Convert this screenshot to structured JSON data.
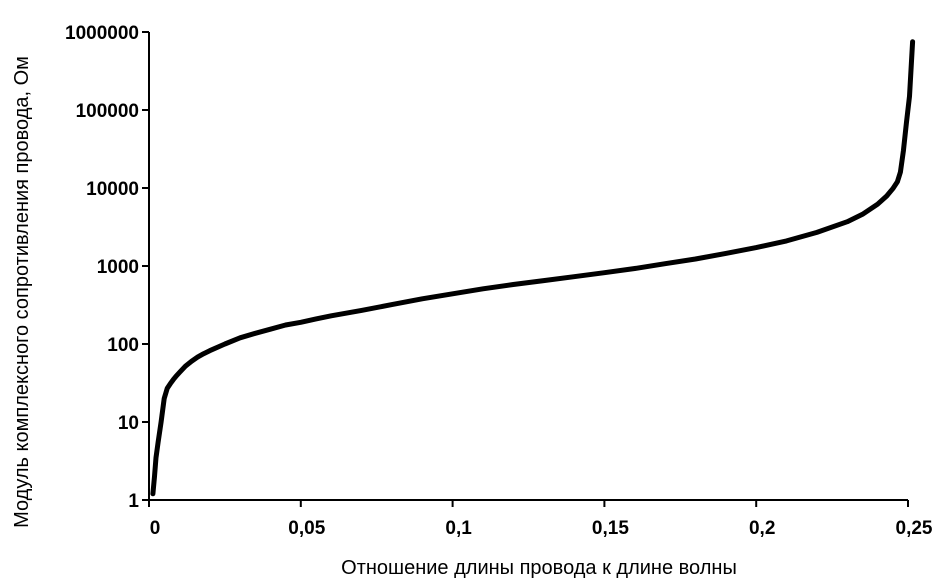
{
  "chart_data": {
    "type": "line",
    "title": "",
    "xlabel": "Отношение длины провода к длине волны",
    "ylabel": "Модуль комплексного сопротивления провода, Ом",
    "xlim": [
      0,
      0.25
    ],
    "ylim": [
      1,
      1000000
    ],
    "yscale": "log",
    "grid": false,
    "legend": "none",
    "x_ticks": [
      "0",
      "0,05",
      "0,1",
      "0,15",
      "0,2",
      "0,25"
    ],
    "y_ticks": [
      "1",
      "10",
      "100",
      "1000",
      "10000",
      "100000",
      "1000000"
    ],
    "line_color": "#000000",
    "series": [
      {
        "x": [
          0.0013,
          0.0018,
          0.0023,
          0.003,
          0.004,
          0.005,
          0.006,
          0.007,
          0.008,
          0.009,
          0.01,
          0.012,
          0.014,
          0.016,
          0.018,
          0.02,
          0.025,
          0.03,
          0.035,
          0.04,
          0.045,
          0.05,
          0.055,
          0.06,
          0.07,
          0.08,
          0.09,
          0.1,
          0.11,
          0.12,
          0.13,
          0.14,
          0.15,
          0.16,
          0.17,
          0.18,
          0.19,
          0.2,
          0.21,
          0.22,
          0.23,
          0.235,
          0.24,
          0.243,
          0.245,
          0.2465,
          0.2475,
          0.2485,
          0.2495,
          0.2505,
          0.2515
        ],
        "y": [
          1.2,
          2,
          3.5,
          5.5,
          10,
          20,
          27,
          31,
          35,
          39,
          43,
          52,
          60,
          68,
          75,
          82,
          100,
          120,
          137,
          155,
          175,
          190,
          210,
          230,
          270,
          320,
          380,
          440,
          510,
          580,
          650,
          730,
          820,
          930,
          1070,
          1230,
          1450,
          1720,
          2100,
          2700,
          3700,
          4600,
          6200,
          7900,
          9800,
          12000,
          16000,
          30000,
          70000,
          150000,
          750000
        ]
      }
    ]
  }
}
